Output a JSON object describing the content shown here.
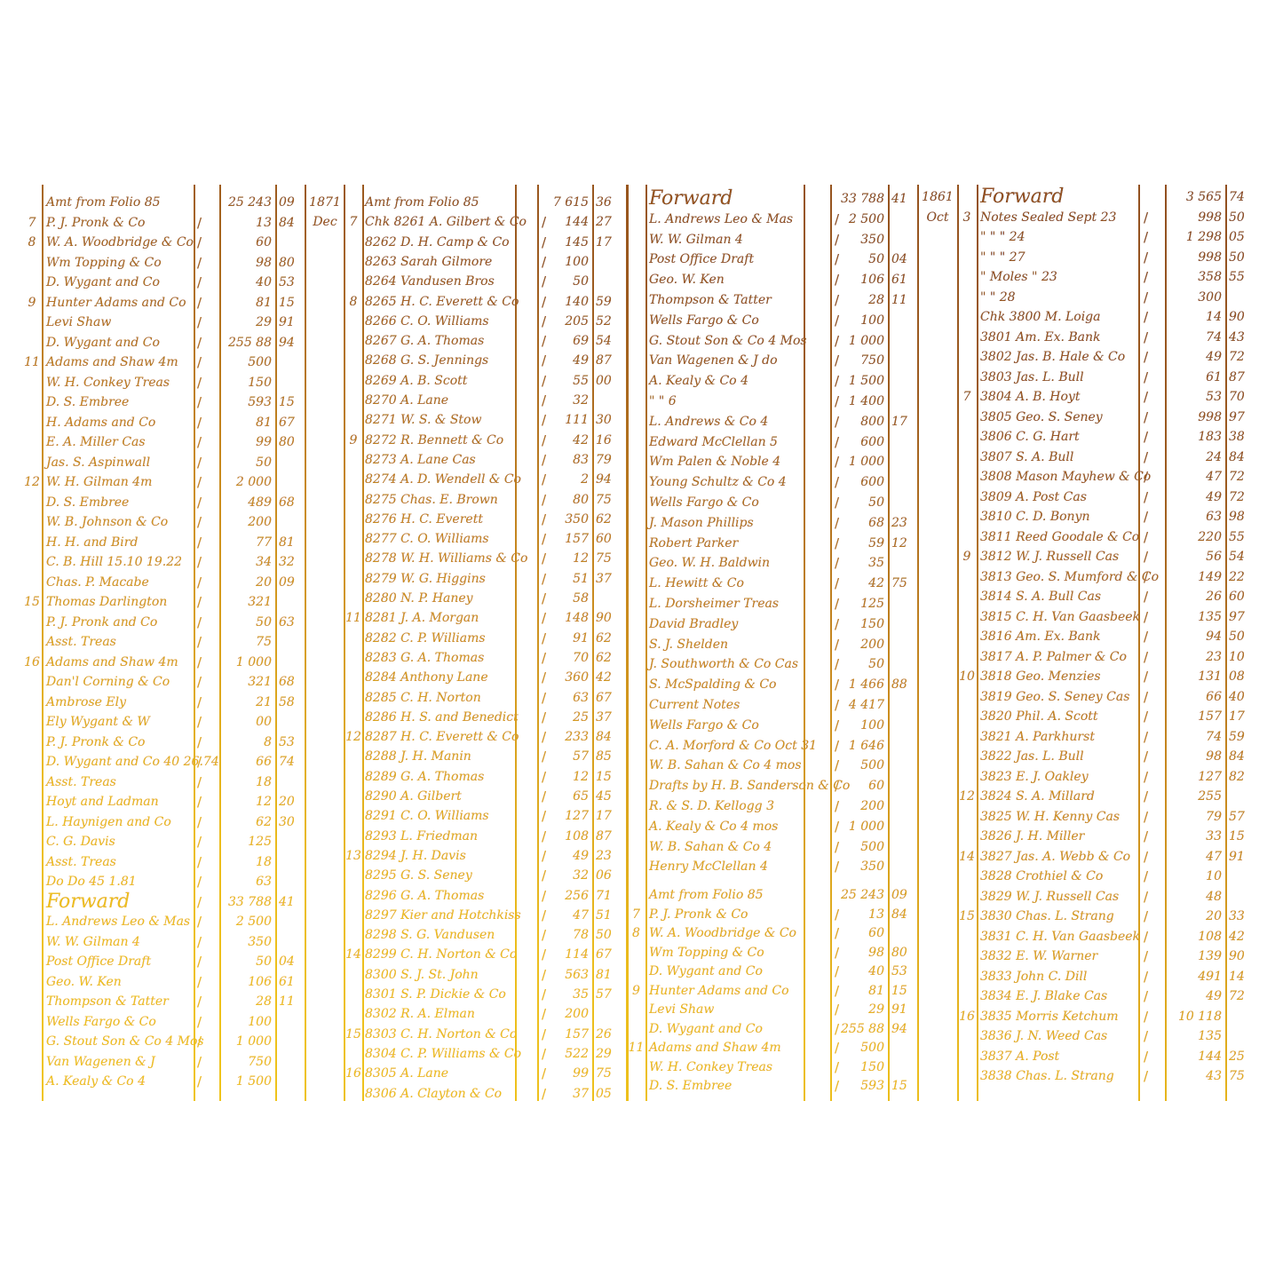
{
  "colors": {
    "ink_top": "#8a4820",
    "ink_bottom": "#f2ca1a",
    "paper": "#ffffff"
  },
  "panels": [
    {
      "id": "page-1",
      "rows": [
        [
          "",
          "Amt from Folio 85",
          "25 243",
          "09"
        ],
        [
          "7",
          "P. J. Pronk & Co",
          "13",
          "84"
        ],
        [
          "8",
          "W. A. Woodbridge & Co",
          "60",
          ""
        ],
        [
          "",
          "Wm Topping & Co",
          "98",
          "80"
        ],
        [
          "",
          "D. Wygant and Co",
          "40",
          "53"
        ],
        [
          "9",
          "Hunter Adams and Co",
          "81",
          "15"
        ],
        [
          "",
          "Levi Shaw",
          "29",
          "91"
        ],
        [
          "",
          "D. Wygant and Co",
          "255 88",
          "94"
        ],
        [
          "11",
          "Adams and Shaw 4m",
          "500",
          ""
        ],
        [
          "",
          "W. H. Conkey Treas",
          "150",
          ""
        ],
        [
          "",
          "D. S. Embree",
          "593",
          "15"
        ],
        [
          "",
          "H. Adams and Co",
          "81",
          "67"
        ],
        [
          "",
          "E. A. Miller Cas",
          "99",
          "80"
        ],
        [
          "",
          "Jas. S. Aspinwall",
          "50",
          ""
        ],
        [
          "12",
          "W. H. Gilman 4m",
          "2 000",
          ""
        ],
        [
          "",
          "D. S. Embree",
          "489",
          "68"
        ],
        [
          "",
          "W. B. Johnson & Co",
          "200",
          ""
        ],
        [
          "",
          "H. H. and Bird",
          "77",
          "81"
        ],
        [
          "",
          "C. B. Hill 15.10 19.22",
          "34",
          "32"
        ],
        [
          "",
          "Chas. P. Macabe",
          "20",
          "09"
        ],
        [
          "15",
          "Thomas Darlington",
          "321",
          ""
        ],
        [
          "",
          "P. J. Pronk and Co",
          "50",
          "63"
        ],
        [
          "",
          "Asst. Treas",
          "75",
          ""
        ],
        [
          "16",
          "Adams and Shaw 4m",
          "1 000",
          ""
        ],
        [
          "",
          "Dan'l Corning & Co",
          "321",
          "68"
        ],
        [
          "",
          "Ambrose Ely",
          "21",
          "58"
        ],
        [
          "",
          "Ely Wygant & W",
          "00",
          ""
        ],
        [
          "",
          "P. J. Pronk & Co",
          "8",
          "53"
        ],
        [
          "",
          "D. Wygant and Co 40 26.74",
          "66",
          "74"
        ],
        [
          "",
          "Asst. Treas",
          "18",
          ""
        ],
        [
          "",
          "Hoyt and Ladman",
          "12",
          "20"
        ],
        [
          "",
          "L. Haynigen and Co",
          "62",
          "30"
        ],
        [
          "",
          "C. G. Davis",
          "125",
          ""
        ],
        [
          "",
          "Asst. Treas",
          "18",
          ""
        ],
        [
          "",
          "Do Do 45 1.81",
          "63",
          ""
        ],
        [
          "",
          "Forward",
          "33 788",
          "41"
        ],
        [
          "",
          "L. Andrews Leo & Mas",
          "2 500",
          ""
        ],
        [
          "",
          "W. W. Gilman 4",
          "350",
          ""
        ],
        [
          "",
          "Post Office Draft",
          "50",
          "04"
        ],
        [
          "",
          "Geo. W. Ken",
          "106",
          "61"
        ],
        [
          "",
          "Thompson & Tatter",
          "28",
          "11"
        ],
        [
          "",
          "Wells Fargo & Co",
          "100",
          ""
        ],
        [
          "",
          "G. Stout Son & Co 4 Mos",
          "1 000",
          ""
        ],
        [
          "",
          "Van Wagenen & J",
          "750",
          ""
        ],
        [
          "",
          "A. Kealy & Co 4",
          "1 500",
          ""
        ]
      ]
    },
    {
      "id": "page-2",
      "rows": [
        [
          "1871",
          "",
          "Amt from Folio 85",
          "7 615",
          "36"
        ],
        [
          "Dec",
          "7",
          "Chk 8261 A. Gilbert & Co",
          "144",
          "27"
        ],
        [
          "",
          "",
          "8262 D. H. Camp & Co",
          "145",
          "17"
        ],
        [
          "",
          "",
          "8263 Sarah Gilmore",
          "100",
          ""
        ],
        [
          "",
          "",
          "8264 Vandusen Bros",
          "50",
          ""
        ],
        [
          "",
          "8",
          "8265 H. C. Everett & Co",
          "140",
          "59"
        ],
        [
          "",
          "",
          "8266 C. O. Williams",
          "205",
          "52"
        ],
        [
          "",
          "",
          "8267 G. A. Thomas",
          "69",
          "54"
        ],
        [
          "",
          "",
          "8268 G. S. Jennings",
          "49",
          "87"
        ],
        [
          "",
          "",
          "8269 A. B. Scott",
          "55",
          "00"
        ],
        [
          "",
          "",
          "8270 A. Lane",
          "32",
          ""
        ],
        [
          "",
          "",
          "8271 W. S. & Stow",
          "111",
          "30"
        ],
        [
          "",
          "9",
          "8272 R. Bennett & Co",
          "42",
          "16"
        ],
        [
          "",
          "",
          "8273 A. Lane Cas",
          "83",
          "79"
        ],
        [
          "",
          "",
          "8274 A. D. Wendell & Co",
          "2",
          "94"
        ],
        [
          "",
          "",
          "8275 Chas. E. Brown",
          "80",
          "75"
        ],
        [
          "",
          "",
          "8276 H. C. Everett",
          "350",
          "62"
        ],
        [
          "",
          "",
          "8277 C. O. Williams",
          "157",
          "60"
        ],
        [
          "",
          "",
          "8278 W. H. Williams & Co",
          "12",
          "75"
        ],
        [
          "",
          "",
          "8279 W. G. Higgins",
          "51",
          "37"
        ],
        [
          "",
          "",
          "8280 N. P. Haney",
          "58",
          ""
        ],
        [
          "",
          "11",
          "8281 J. A. Morgan",
          "148",
          "90"
        ],
        [
          "",
          "",
          "8282 C. P. Williams",
          "91",
          "62"
        ],
        [
          "",
          "",
          "8283 G. A. Thomas",
          "70",
          "62"
        ],
        [
          "",
          "",
          "8284 Anthony Lane",
          "360",
          "42"
        ],
        [
          "",
          "",
          "8285 C. H. Norton",
          "63",
          "67"
        ],
        [
          "",
          "",
          "8286 H. S. and Benedict",
          "25",
          "37"
        ],
        [
          "",
          "12",
          "8287 H. C. Everett & Co",
          "233",
          "84"
        ],
        [
          "",
          "",
          "8288 J. H. Manin",
          "57",
          "85"
        ],
        [
          "",
          "",
          "8289 G. A. Thomas",
          "12",
          "15"
        ],
        [
          "",
          "",
          "8290 A. Gilbert",
          "65",
          "45"
        ],
        [
          "",
          "",
          "8291 C. O. Williams",
          "127",
          "17"
        ],
        [
          "",
          "",
          "8293 L. Friedman",
          "108",
          "87"
        ],
        [
          "",
          "13",
          "8294 J. H. Davis",
          "49",
          "23"
        ],
        [
          "",
          "",
          "8295 G. S. Seney",
          "32",
          "06"
        ],
        [
          "",
          "",
          "8296 G. A. Thomas",
          "256",
          "71"
        ],
        [
          "",
          "",
          "8297 Kier and Hotchkiss",
          "47",
          "51"
        ],
        [
          "",
          "",
          "8298 S. G. Vandusen",
          "78",
          "50"
        ],
        [
          "",
          "14",
          "8299 C. H. Norton & Co",
          "114",
          "67"
        ],
        [
          "",
          "",
          "8300 S. J. St. John",
          "563",
          "81"
        ],
        [
          "",
          "",
          "8301 S. P. Dickie & Co",
          "35",
          "57"
        ],
        [
          "",
          "",
          "8302 R. A. Elman",
          "200",
          ""
        ],
        [
          "",
          "15",
          "8303 C. H. Norton & Co",
          "157",
          "26"
        ],
        [
          "",
          "",
          "8304 C. P. Williams & Co",
          "522",
          "29"
        ],
        [
          "",
          "16",
          "8305 A. Lane",
          "99",
          "75"
        ],
        [
          "",
          "",
          "8306 A. Clayton & Co",
          "37",
          "05"
        ]
      ]
    },
    {
      "id": "page-3",
      "rows": [
        [
          "",
          "Forward",
          "33 788",
          "41"
        ],
        [
          "",
          "L. Andrews Leo & Mas",
          "2 500",
          ""
        ],
        [
          "",
          "W. W. Gilman 4",
          "350",
          ""
        ],
        [
          "",
          "Post Office Draft",
          "50",
          "04"
        ],
        [
          "",
          "Geo. W. Ken",
          "106",
          "61"
        ],
        [
          "",
          "Thompson & Tatter",
          "28",
          "11"
        ],
        [
          "",
          "Wells Fargo & Co",
          "100",
          ""
        ],
        [
          "",
          "G. Stout Son & Co 4 Mos",
          "1 000",
          ""
        ],
        [
          "",
          "Van Wagenen & J do",
          "750",
          ""
        ],
        [
          "",
          "A. Kealy & Co 4",
          "1 500",
          ""
        ],
        [
          "",
          "\"  \"  6",
          "1 400",
          ""
        ],
        [
          "",
          "L. Andrews & Co 4",
          "800",
          "17"
        ],
        [
          "",
          "Edward McClellan 5",
          "600",
          ""
        ],
        [
          "",
          "Wm Palen & Noble 4",
          "1 000",
          ""
        ],
        [
          "",
          "Young Schultz & Co 4",
          "600",
          ""
        ],
        [
          "",
          "Wells Fargo & Co",
          "50",
          ""
        ],
        [
          "",
          "J. Mason Phillips",
          "68",
          "23"
        ],
        [
          "",
          "Robert Parker",
          "59",
          "12"
        ],
        [
          "",
          "Geo. W. H. Baldwin",
          "35",
          ""
        ],
        [
          "",
          "L. Hewitt & Co",
          "42",
          "75"
        ],
        [
          "",
          "L. Dorsheimer Treas",
          "125",
          ""
        ],
        [
          "",
          "David Bradley",
          "150",
          ""
        ],
        [
          "",
          "S. J. Shelden",
          "200",
          ""
        ],
        [
          "",
          "J. Southworth & Co Cas",
          "50",
          ""
        ],
        [
          "",
          "S. McSpalding & Co",
          "1 466",
          "88"
        ],
        [
          "",
          "Current Notes",
          "4 417",
          ""
        ],
        [
          "",
          "Wells Fargo & Co",
          "100",
          ""
        ],
        [
          "",
          "C. A. Morford & Co Oct 31",
          "1 646",
          ""
        ],
        [
          "",
          "W. B. Sahan & Co 4 mos",
          "500",
          ""
        ],
        [
          "",
          "Drafts by H. B. Sanderson & Co",
          "60",
          ""
        ],
        [
          "",
          "R. & S. D. Kellogg 3",
          "200",
          ""
        ],
        [
          "",
          "A. Kealy & Co 4 mos",
          "1 000",
          ""
        ],
        [
          "",
          "W. B. Sahan & Co 4",
          "500",
          ""
        ],
        [
          "",
          "Henry McClellan 4",
          "350",
          ""
        ]
      ],
      "lower_rows": [
        [
          "",
          "Amt from Folio 85",
          "25 243",
          "09"
        ],
        [
          "7",
          "P. J. Pronk & Co",
          "13",
          "84"
        ],
        [
          "8",
          "W. A. Woodbridge & Co",
          "60",
          ""
        ],
        [
          "",
          "Wm Topping & Co",
          "98",
          "80"
        ],
        [
          "",
          "D. Wygant and Co",
          "40",
          "53"
        ],
        [
          "9",
          "Hunter Adams and Co",
          "81",
          "15"
        ],
        [
          "",
          "Levi Shaw",
          "29",
          "91"
        ],
        [
          "",
          "D. Wygant and Co",
          "255 88",
          "94"
        ],
        [
          "11",
          "Adams and Shaw 4m",
          "500",
          ""
        ],
        [
          "",
          "W. H. Conkey Treas",
          "150",
          ""
        ],
        [
          "",
          "D. S. Embree",
          "593",
          "15"
        ]
      ]
    },
    {
      "id": "page-4",
      "rows": [
        [
          "1861",
          "",
          "Forward",
          "3 565",
          "74"
        ],
        [
          "Oct",
          "3",
          "Notes Sealed Sept 23",
          "998",
          "50"
        ],
        [
          "",
          "",
          "\"   \"   \" 24",
          "1 298",
          "05"
        ],
        [
          "",
          "",
          "\"   \"   \" 27",
          "998",
          "50"
        ],
        [
          "",
          "",
          "\"  Moles  \" 23",
          "358",
          "55"
        ],
        [
          "",
          "",
          "\"   \"   28",
          "300",
          ""
        ],
        [
          "",
          "",
          "Chk 3800 M. Loiga",
          "14",
          "90"
        ],
        [
          "",
          "",
          "3801 Am. Ex. Bank",
          "74",
          "43"
        ],
        [
          "",
          "",
          "3802 Jas. B. Hale & Co",
          "49",
          "72"
        ],
        [
          "",
          "",
          "3803 Jas. L. Bull",
          "61",
          "87"
        ],
        [
          "",
          "7",
          "3804 A. B. Hoyt",
          "53",
          "70"
        ],
        [
          "",
          "",
          "3805 Geo. S. Seney",
          "998",
          "97"
        ],
        [
          "",
          "",
          "3806 C. G. Hart",
          "183",
          "38"
        ],
        [
          "",
          "",
          "3807 S. A. Bull",
          "24",
          "84"
        ],
        [
          "",
          "",
          "3808 Mason Mayhew & Co",
          "47",
          "72"
        ],
        [
          "",
          "",
          "3809 A. Post Cas",
          "49",
          "72"
        ],
        [
          "",
          "",
          "3810 C. D. Bonyn",
          "63",
          "98"
        ],
        [
          "",
          "",
          "3811 Reed Goodale & Co",
          "220",
          "55"
        ],
        [
          "",
          "9",
          "3812 W. J. Russell Cas",
          "56",
          "54"
        ],
        [
          "",
          "",
          "3813 Geo. S. Mumford & Co",
          "149",
          "22"
        ],
        [
          "",
          "",
          "3814 S. A. Bull Cas",
          "26",
          "60"
        ],
        [
          "",
          "",
          "3815 C. H. Van Gaasbeek",
          "135",
          "97"
        ],
        [
          "",
          "",
          "3816 Am. Ex. Bank",
          "94",
          "50"
        ],
        [
          "",
          "",
          "3817 A. P. Palmer & Co",
          "23",
          "10"
        ],
        [
          "",
          "10",
          "3818 Geo. Menzies",
          "131",
          "08"
        ],
        [
          "",
          "",
          "3819 Geo. S. Seney Cas",
          "66",
          "40"
        ],
        [
          "",
          "",
          "3820 Phil. A. Scott",
          "157",
          "17"
        ],
        [
          "",
          "",
          "3821 A. Parkhurst",
          "74",
          "59"
        ],
        [
          "",
          "",
          "3822 Jas. L. Bull",
          "98",
          "84"
        ],
        [
          "",
          "",
          "3823 E. J. Oakley",
          "127",
          "82"
        ],
        [
          "",
          "12",
          "3824 S. A. Millard",
          "255",
          ""
        ],
        [
          "",
          "",
          "3825 W. H. Kenny Cas",
          "79",
          "57"
        ],
        [
          "",
          "",
          "3826 J. H. Miller",
          "33",
          "15"
        ],
        [
          "",
          "14",
          "3827 Jas. A. Webb & Co",
          "47",
          "91"
        ],
        [
          "",
          "",
          "3828 Crothiel & Co",
          "10",
          ""
        ],
        [
          "",
          "",
          "3829 W. J. Russell Cas",
          "48",
          ""
        ],
        [
          "",
          "15",
          "3830 Chas. L. Strang",
          "20",
          "33"
        ],
        [
          "",
          "",
          "3831 C. H. Van Gaasbeek",
          "108",
          "42"
        ],
        [
          "",
          "",
          "3832 E. W. Warner",
          "139",
          "90"
        ],
        [
          "",
          "",
          "3833 John C. Dill",
          "491",
          "14"
        ],
        [
          "",
          "",
          "3834 E. J. Blake Cas",
          "49",
          "72"
        ],
        [
          "",
          "16",
          "3835 Morris Ketchum",
          "10 118",
          ""
        ],
        [
          "",
          "",
          "3836 J. N. Weed Cas",
          "135",
          ""
        ],
        [
          "",
          "",
          "3837 A. Post",
          "144",
          "25"
        ],
        [
          "",
          "",
          "3838 Chas. L. Strang",
          "43",
          "75"
        ]
      ]
    }
  ]
}
